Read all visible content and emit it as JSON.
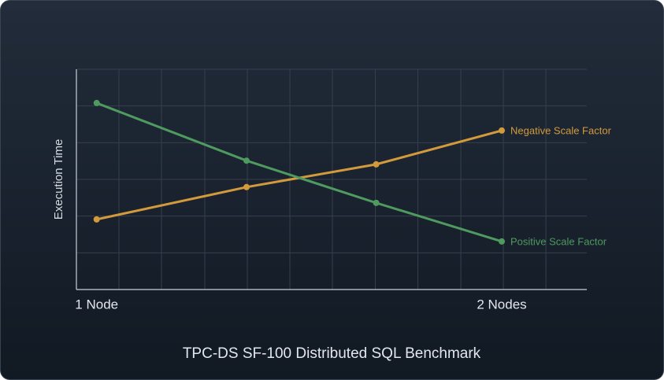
{
  "chart_data": {
    "type": "line",
    "title": "TPC-DS SF-100 Distributed SQL Benchmark",
    "y_label": "Execution Time",
    "x": [
      1,
      1.37,
      1.69,
      2
    ],
    "xlim": [
      0.95,
      2.21
    ],
    "xticks": [
      {
        "value": 1,
        "label": "1 Node"
      },
      {
        "value": 2,
        "label": "2 Nodes"
      }
    ],
    "x_gridlines": [
      1.055,
      1.16,
      1.267,
      1.372,
      1.477,
      1.582,
      1.688,
      1.793,
      1.899,
      2.004,
      2.109
    ],
    "ylim": [
      0,
      6
    ],
    "yticks": [
      1,
      2,
      3,
      4,
      5,
      6
    ],
    "grid": true,
    "series": [
      {
        "name": "Negative Scale Factor",
        "color": "#d39a3c",
        "values": [
          1.91,
          2.79,
          3.41,
          4.33
        ]
      },
      {
        "name": "Positive Scale Factor",
        "color": "#4f9a5f",
        "values": [
          5.08,
          3.51,
          2.36,
          1.31
        ]
      }
    ]
  }
}
